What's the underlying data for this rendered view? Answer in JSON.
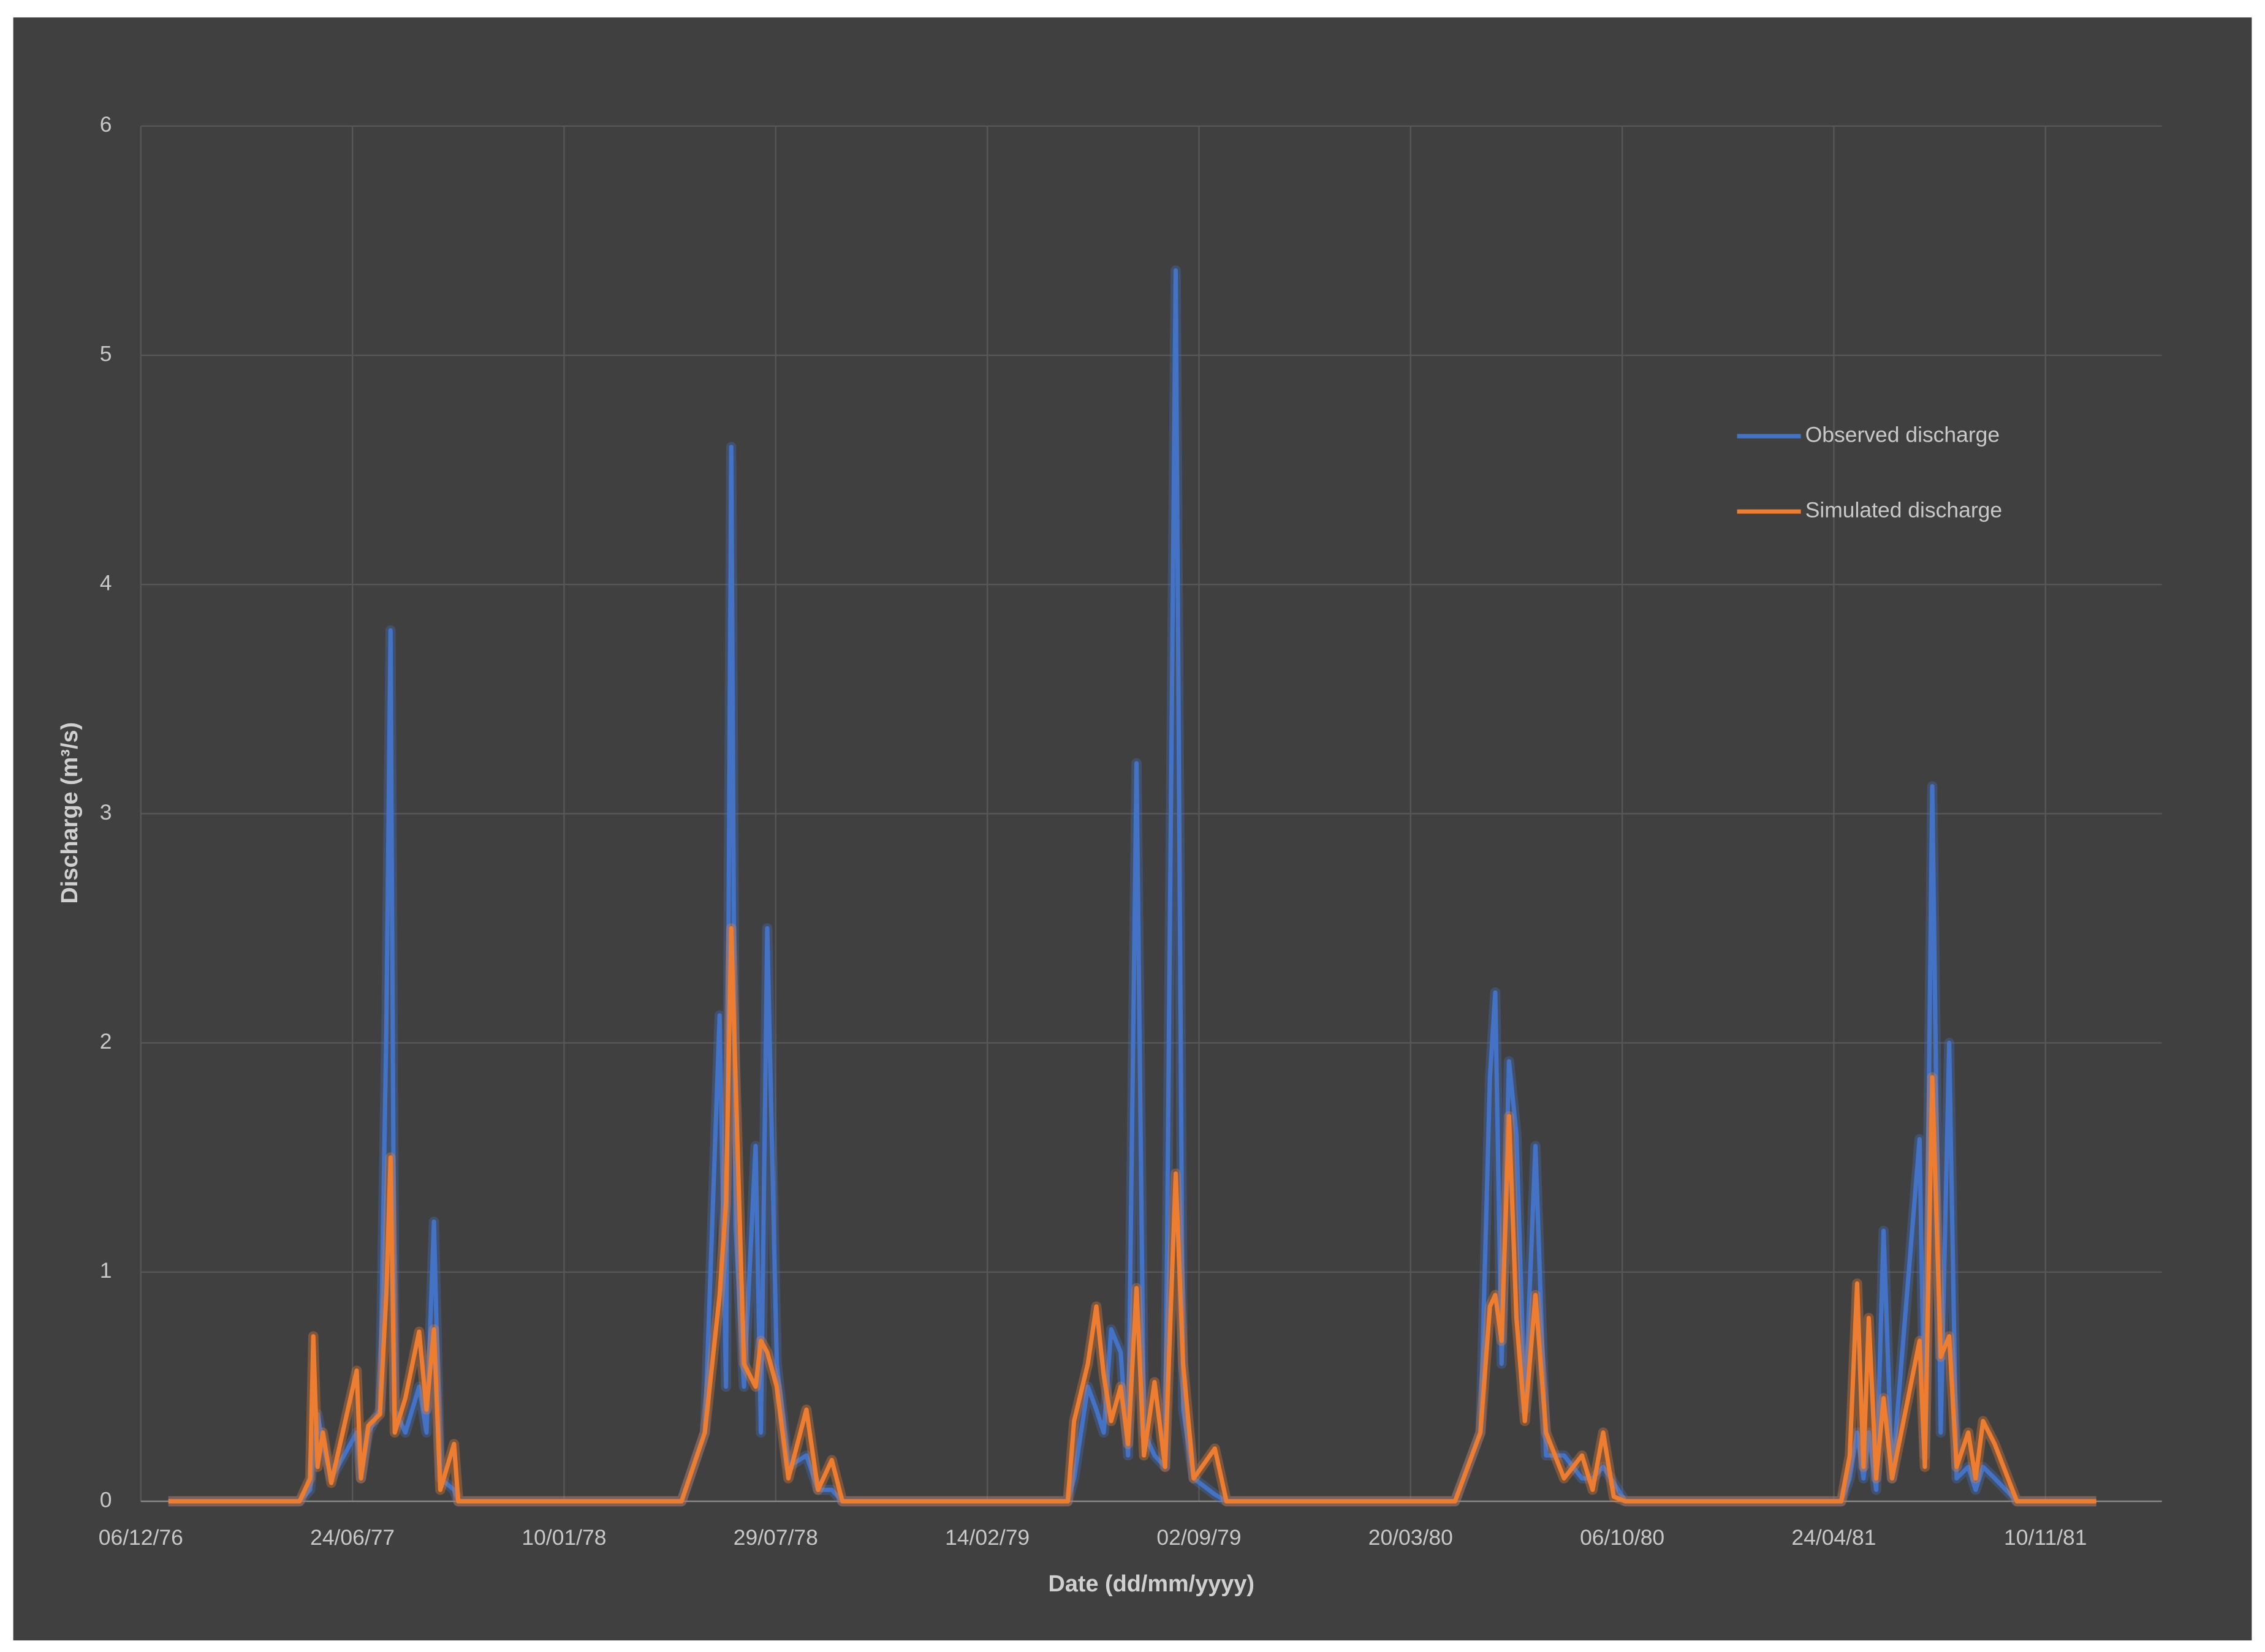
{
  "chart_data": {
    "type": "line",
    "x_label": "Date (dd/mm/yyyy)",
    "y_label": "Discharge (m³/s)",
    "x": [
      "01/01/77",
      "05/05/77",
      "15/05/77",
      "18/05/77",
      "22/05/77",
      "27/05/77",
      "04/06/77",
      "28/06/77",
      "02/07/77",
      "09/07/77",
      "20/07/77",
      "26/07/77",
      "30/07/77",
      "03/08/77",
      "13/08/77",
      "26/08/77",
      "02/09/77",
      "09/09/77",
      "15/09/77",
      "28/09/77",
      "02/10/77",
      "01/05/78",
      "23/05/78",
      "06/06/78",
      "12/06/78",
      "17/06/78",
      "21/06/78",
      "29/06/78",
      "10/07/78",
      "15/07/78",
      "21/07/78",
      "30/07/78",
      "10/08/78",
      "27/08/78",
      "07/09/78",
      "20/09/78",
      "30/09/78",
      "01/05/79",
      "07/05/79",
      "20/05/79",
      "28/05/79",
      "04/06/79",
      "11/06/79",
      "20/06/79",
      "27/06/79",
      "05/07/79",
      "12/07/79",
      "22/07/79",
      "01/08/79",
      "11/08/79",
      "18/08/79",
      "28/08/79",
      "17/09/79",
      "28/09/79",
      "01/05/80",
      "25/05/80",
      "03/06/80",
      "08/06/80",
      "14/06/80",
      "21/06/80",
      "28/06/80",
      "06/07/80",
      "16/07/80",
      "26/07/80",
      "12/08/80",
      "29/08/80",
      "08/09/80",
      "18/09/80",
      "28/09/80",
      "09/10/80",
      "01/05/81",
      "09/05/81",
      "16/05/81",
      "22/05/81",
      "27/05/81",
      "03/06/81",
      "10/06/81",
      "18/06/81",
      "14/07/81",
      "19/07/81",
      "26/07/81",
      "03/08/81",
      "11/08/81",
      "18/08/81",
      "29/08/81",
      "05/09/81",
      "12/09/81",
      "23/09/81",
      "14/10/81",
      "28/12/81"
    ],
    "series": [
      {
        "name": "Observed discharge",
        "color": "#4472c4",
        "values": [
          0,
          0,
          0.05,
          0.2,
          0.38,
          0.25,
          0.1,
          0.3,
          0.1,
          0.3,
          0.4,
          2.05,
          3.8,
          0.4,
          0.3,
          0.5,
          0.3,
          1.22,
          0.1,
          0.05,
          0,
          0,
          0.3,
          2.12,
          0.5,
          4.6,
          1.2,
          0.5,
          1.55,
          0.3,
          2.5,
          0.6,
          0.15,
          0.2,
          0.05,
          0.05,
          0,
          0,
          0.1,
          0.5,
          0.4,
          0.3,
          0.75,
          0.65,
          0.2,
          3.22,
          0.3,
          0.2,
          0.15,
          5.37,
          0.4,
          0.1,
          0.03,
          0,
          0,
          0.3,
          1.85,
          2.22,
          0.6,
          1.92,
          1.6,
          0.4,
          1.55,
          0.2,
          0.2,
          0.1,
          0.1,
          0.15,
          0.08,
          0,
          0,
          0.1,
          0.3,
          0.1,
          0.3,
          0.05,
          1.18,
          0.1,
          1.58,
          0.2,
          3.12,
          0.3,
          2.0,
          0.1,
          0.15,
          0.05,
          0.15,
          0.1,
          0,
          0
        ]
      },
      {
        "name": "Simulated discharge",
        "color": "#ed7d31",
        "values": [
          0,
          0,
          0.1,
          0.72,
          0.15,
          0.3,
          0.08,
          0.57,
          0.1,
          0.33,
          0.38,
          0.9,
          1.5,
          0.3,
          0.45,
          0.74,
          0.4,
          0.75,
          0.05,
          0.25,
          0,
          0,
          0.3,
          0.9,
          1.3,
          2.5,
          1.85,
          0.6,
          0.5,
          0.7,
          0.65,
          0.5,
          0.1,
          0.4,
          0.05,
          0.18,
          0,
          0,
          0.35,
          0.6,
          0.85,
          0.55,
          0.35,
          0.5,
          0.25,
          0.93,
          0.2,
          0.52,
          0.15,
          1.43,
          0.6,
          0.1,
          0.23,
          0,
          0,
          0.3,
          0.85,
          0.9,
          0.7,
          1.68,
          0.8,
          0.35,
          0.9,
          0.3,
          0.1,
          0.2,
          0.05,
          0.3,
          0.02,
          0,
          0,
          0.2,
          0.95,
          0.15,
          0.8,
          0.1,
          0.45,
          0.1,
          0.7,
          0.15,
          1.85,
          0.63,
          0.72,
          0.15,
          0.3,
          0.1,
          0.35,
          0.25,
          0,
          0
        ]
      }
    ],
    "xlim": [
      "06/12/76",
      "28/02/82"
    ],
    "xticks": [
      "06/12/76",
      "24/06/77",
      "10/01/78",
      "29/07/78",
      "14/02/79",
      "02/09/79",
      "20/03/80",
      "06/10/80",
      "24/04/81",
      "10/11/81"
    ],
    "ylim": [
      0,
      6
    ],
    "yticks": [
      0,
      1,
      2,
      3,
      4,
      5,
      6
    ],
    "grid": true,
    "legend": "upper-right"
  }
}
